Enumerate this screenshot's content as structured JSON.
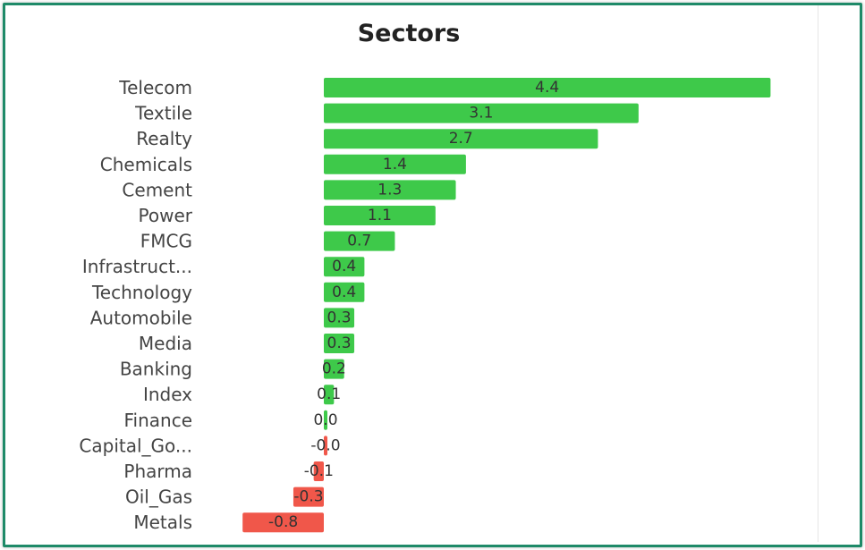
{
  "chart_data": {
    "type": "bar",
    "orientation": "horizontal",
    "title": "Sectors",
    "xlabel": "",
    "ylabel": "",
    "grid": false,
    "categories": [
      "Telecom",
      "Textile",
      "Realty",
      "Chemicals",
      "Cement",
      "Power",
      "FMCG",
      "Infrastruct...",
      "Technology",
      "Automobile",
      "Media",
      "Banking",
      "Index",
      "Finance",
      "Capital_Go...",
      "Pharma",
      "Oil_Gas",
      "Metals"
    ],
    "values": [
      4.4,
      3.1,
      2.7,
      1.4,
      1.3,
      1.1,
      0.7,
      0.4,
      0.4,
      0.3,
      0.3,
      0.2,
      0.1,
      0.0,
      -0.0,
      -0.1,
      -0.3,
      -0.8
    ],
    "value_labels": [
      "4.4",
      "3.1",
      "2.7",
      "1.4",
      "1.3",
      "1.1",
      "0.7",
      "0.4",
      "0.4",
      "0.3",
      "0.3",
      "0.2",
      "0.1",
      "0.0",
      "-0.0",
      "-0.1",
      "-0.3",
      "-0.8"
    ],
    "colors": {
      "positive": "#3ec94a",
      "negative": "#f0574a"
    }
  }
}
